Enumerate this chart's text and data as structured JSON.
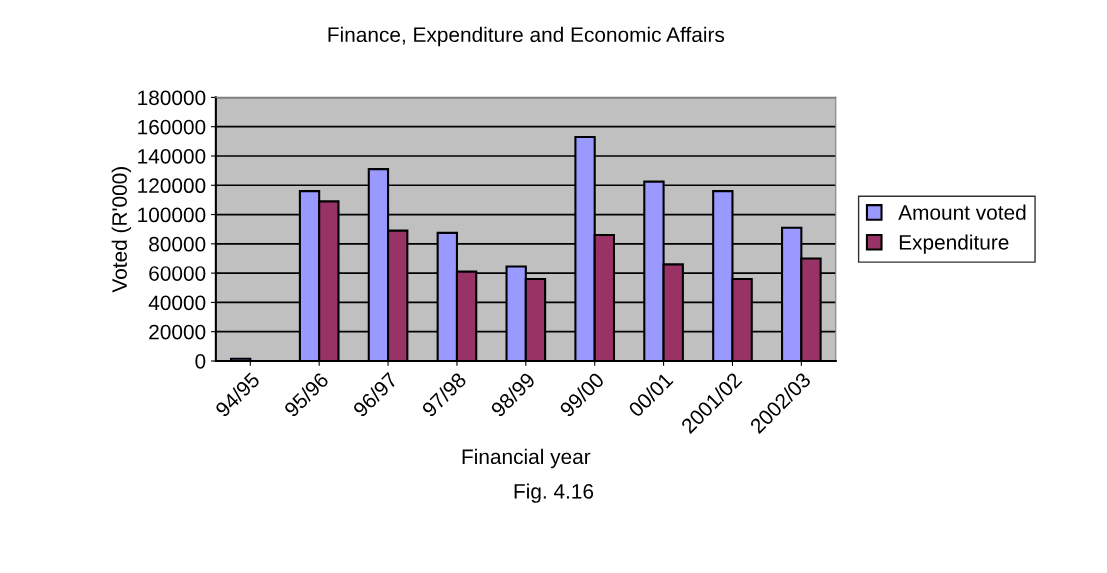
{
  "chart_data": {
    "type": "bar",
    "title": "Finance, Expenditure and Economic Affairs",
    "xlabel": "Financial year",
    "ylabel": "Voted (R'000)",
    "annotations": [
      "Fig. 4.16"
    ],
    "categories": [
      "94/95",
      "95/96",
      "96/97",
      "97/98",
      "98/99",
      "99/00",
      "00/01",
      "2001/02",
      "2002/03"
    ],
    "series": [
      {
        "name": "Amount voted",
        "color": "#9999ff",
        "values": [
          1500,
          116000,
          131000,
          87500,
          64500,
          153000,
          122500,
          116000,
          91000
        ]
      },
      {
        "name": "Expenditure",
        "color": "#993366",
        "values": [
          null,
          109000,
          89000,
          61000,
          56000,
          86000,
          66000,
          56000,
          70000
        ]
      }
    ],
    "ylim": [
      0,
      180000
    ],
    "yticks": [
      0,
      20000,
      40000,
      60000,
      80000,
      100000,
      120000,
      140000,
      160000,
      180000
    ],
    "grid": "y",
    "legend": "right"
  }
}
